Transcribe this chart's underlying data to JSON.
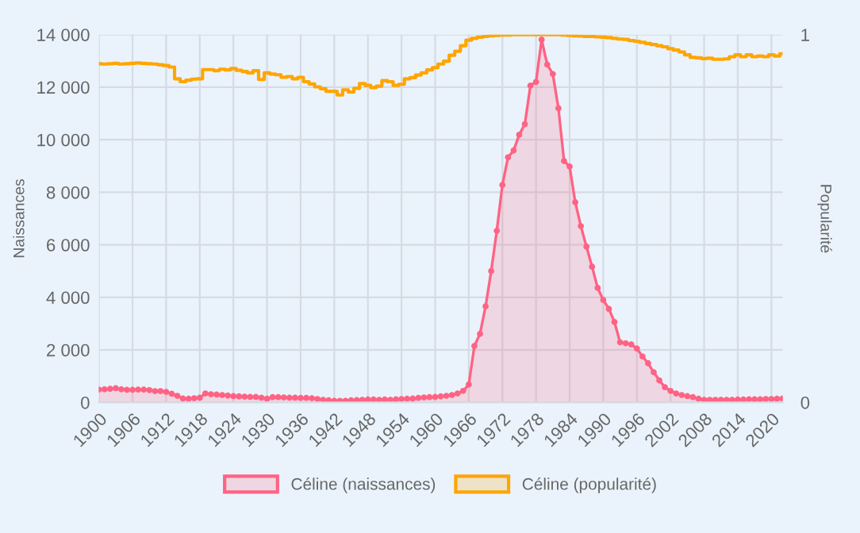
{
  "chart_data": {
    "type": "area",
    "x": [
      1900,
      1901,
      1902,
      1903,
      1904,
      1905,
      1906,
      1907,
      1908,
      1909,
      1910,
      1911,
      1912,
      1913,
      1914,
      1915,
      1916,
      1917,
      1918,
      1919,
      1920,
      1921,
      1922,
      1923,
      1924,
      1925,
      1926,
      1927,
      1928,
      1929,
      1930,
      1931,
      1932,
      1933,
      1934,
      1935,
      1936,
      1937,
      1938,
      1939,
      1940,
      1941,
      1942,
      1943,
      1944,
      1945,
      1946,
      1947,
      1948,
      1949,
      1950,
      1951,
      1952,
      1953,
      1954,
      1955,
      1956,
      1957,
      1958,
      1959,
      1960,
      1961,
      1962,
      1963,
      1964,
      1965,
      1966,
      1967,
      1968,
      1969,
      1970,
      1971,
      1972,
      1973,
      1974,
      1975,
      1976,
      1977,
      1978,
      1979,
      1980,
      1981,
      1982,
      1983,
      1984,
      1985,
      1986,
      1987,
      1988,
      1989,
      1990,
      1991,
      1992,
      1993,
      1994,
      1995,
      1996,
      1997,
      1998,
      1999,
      2000,
      2001,
      2002,
      2003,
      2004,
      2005,
      2006,
      2007,
      2008,
      2009,
      2010,
      2011,
      2012,
      2013,
      2014,
      2015,
      2016,
      2017,
      2018,
      2019,
      2020,
      2021,
      2022
    ],
    "series": [
      {
        "name": "Céline (naissances)",
        "color": "#ff6384",
        "marker": "circle",
        "values": [
          490,
          500,
          520,
          540,
          500,
          480,
          480,
          490,
          490,
          470,
          430,
          430,
          400,
          330,
          250,
          150,
          140,
          160,
          180,
          340,
          310,
          300,
          280,
          260,
          240,
          230,
          220,
          210,
          210,
          180,
          140,
          200,
          200,
          190,
          180,
          180,
          170,
          170,
          160,
          130,
          100,
          80,
          60,
          60,
          60,
          80,
          90,
          100,
          110,
          110,
          100,
          110,
          100,
          120,
          130,
          140,
          150,
          170,
          190,
          200,
          210,
          230,
          250,
          280,
          340,
          440,
          680,
          2150,
          2610,
          3660,
          5000,
          6530,
          8280,
          9330,
          9590,
          10190,
          10590,
          12060,
          12200,
          13810,
          12860,
          12500,
          11200,
          9190,
          8980,
          7620,
          6710,
          5930,
          5170,
          4360,
          3900,
          3560,
          3060,
          2290,
          2250,
          2210,
          2050,
          1750,
          1490,
          1150,
          840,
          580,
          440,
          340,
          280,
          240,
          200,
          140,
          100,
          100,
          100,
          100,
          100,
          100,
          110,
          110,
          120,
          120,
          120,
          130,
          130,
          140,
          150
        ]
      },
      {
        "name": "Céline (popularité)",
        "type": "step",
        "axis": "y2",
        "color": "#ffa500",
        "marker": "none",
        "values": [
          0.921,
          0.92,
          0.921,
          0.922,
          0.92,
          0.921,
          0.922,
          0.923,
          0.922,
          0.921,
          0.92,
          0.918,
          0.916,
          0.912,
          0.88,
          0.872,
          0.876,
          0.879,
          0.88,
          0.905,
          0.905,
          0.902,
          0.906,
          0.904,
          0.908,
          0.903,
          0.9,
          0.896,
          0.902,
          0.878,
          0.896,
          0.893,
          0.891,
          0.884,
          0.886,
          0.88,
          0.884,
          0.872,
          0.866,
          0.858,
          0.853,
          0.846,
          0.846,
          0.836,
          0.85,
          0.844,
          0.854,
          0.867,
          0.862,
          0.856,
          0.86,
          0.875,
          0.872,
          0.862,
          0.865,
          0.88,
          0.883,
          0.89,
          0.896,
          0.904,
          0.91,
          0.92,
          0.928,
          0.944,
          0.955,
          0.97,
          0.985,
          0.99,
          0.993,
          0.995,
          0.997,
          0.998,
          0.999,
          0.999,
          1,
          1,
          1,
          1,
          1,
          1,
          1,
          1,
          1,
          0.999,
          0.998,
          0.997,
          0.996,
          0.995,
          0.995,
          0.994,
          0.993,
          0.992,
          0.99,
          0.988,
          0.987,
          0.984,
          0.982,
          0.979,
          0.976,
          0.973,
          0.97,
          0.967,
          0.962,
          0.958,
          0.953,
          0.945,
          0.938,
          0.937,
          0.935,
          0.936,
          0.933,
          0.933,
          0.934,
          0.94,
          0.945,
          0.94,
          0.945,
          0.94,
          0.942,
          0.94,
          0.945,
          0.942,
          0.948
        ]
      }
    ],
    "ylabel": "Naissances",
    "y2label": "Popularité",
    "xlim": [
      1900,
      2022
    ],
    "xticks": [
      1900,
      1906,
      1912,
      1918,
      1924,
      1930,
      1936,
      1942,
      1948,
      1954,
      1960,
      1966,
      1972,
      1978,
      1984,
      1990,
      1996,
      2002,
      2008,
      2014,
      2020
    ],
    "ylim": [
      0,
      14000
    ],
    "yticks": [
      {
        "value": 0,
        "label": "0"
      },
      {
        "value": 2000,
        "label": "2 000"
      },
      {
        "value": 4000,
        "label": "4 000"
      },
      {
        "value": 6000,
        "label": "6 000"
      },
      {
        "value": 8000,
        "label": "8 000"
      },
      {
        "value": 10000,
        "label": "10 000"
      },
      {
        "value": 12000,
        "label": "12 000"
      },
      {
        "value": 14000,
        "label": "14 000"
      }
    ],
    "y2lim": [
      0,
      1
    ],
    "y2ticks": [
      0,
      1
    ],
    "grid": true,
    "legend": "bottom"
  }
}
